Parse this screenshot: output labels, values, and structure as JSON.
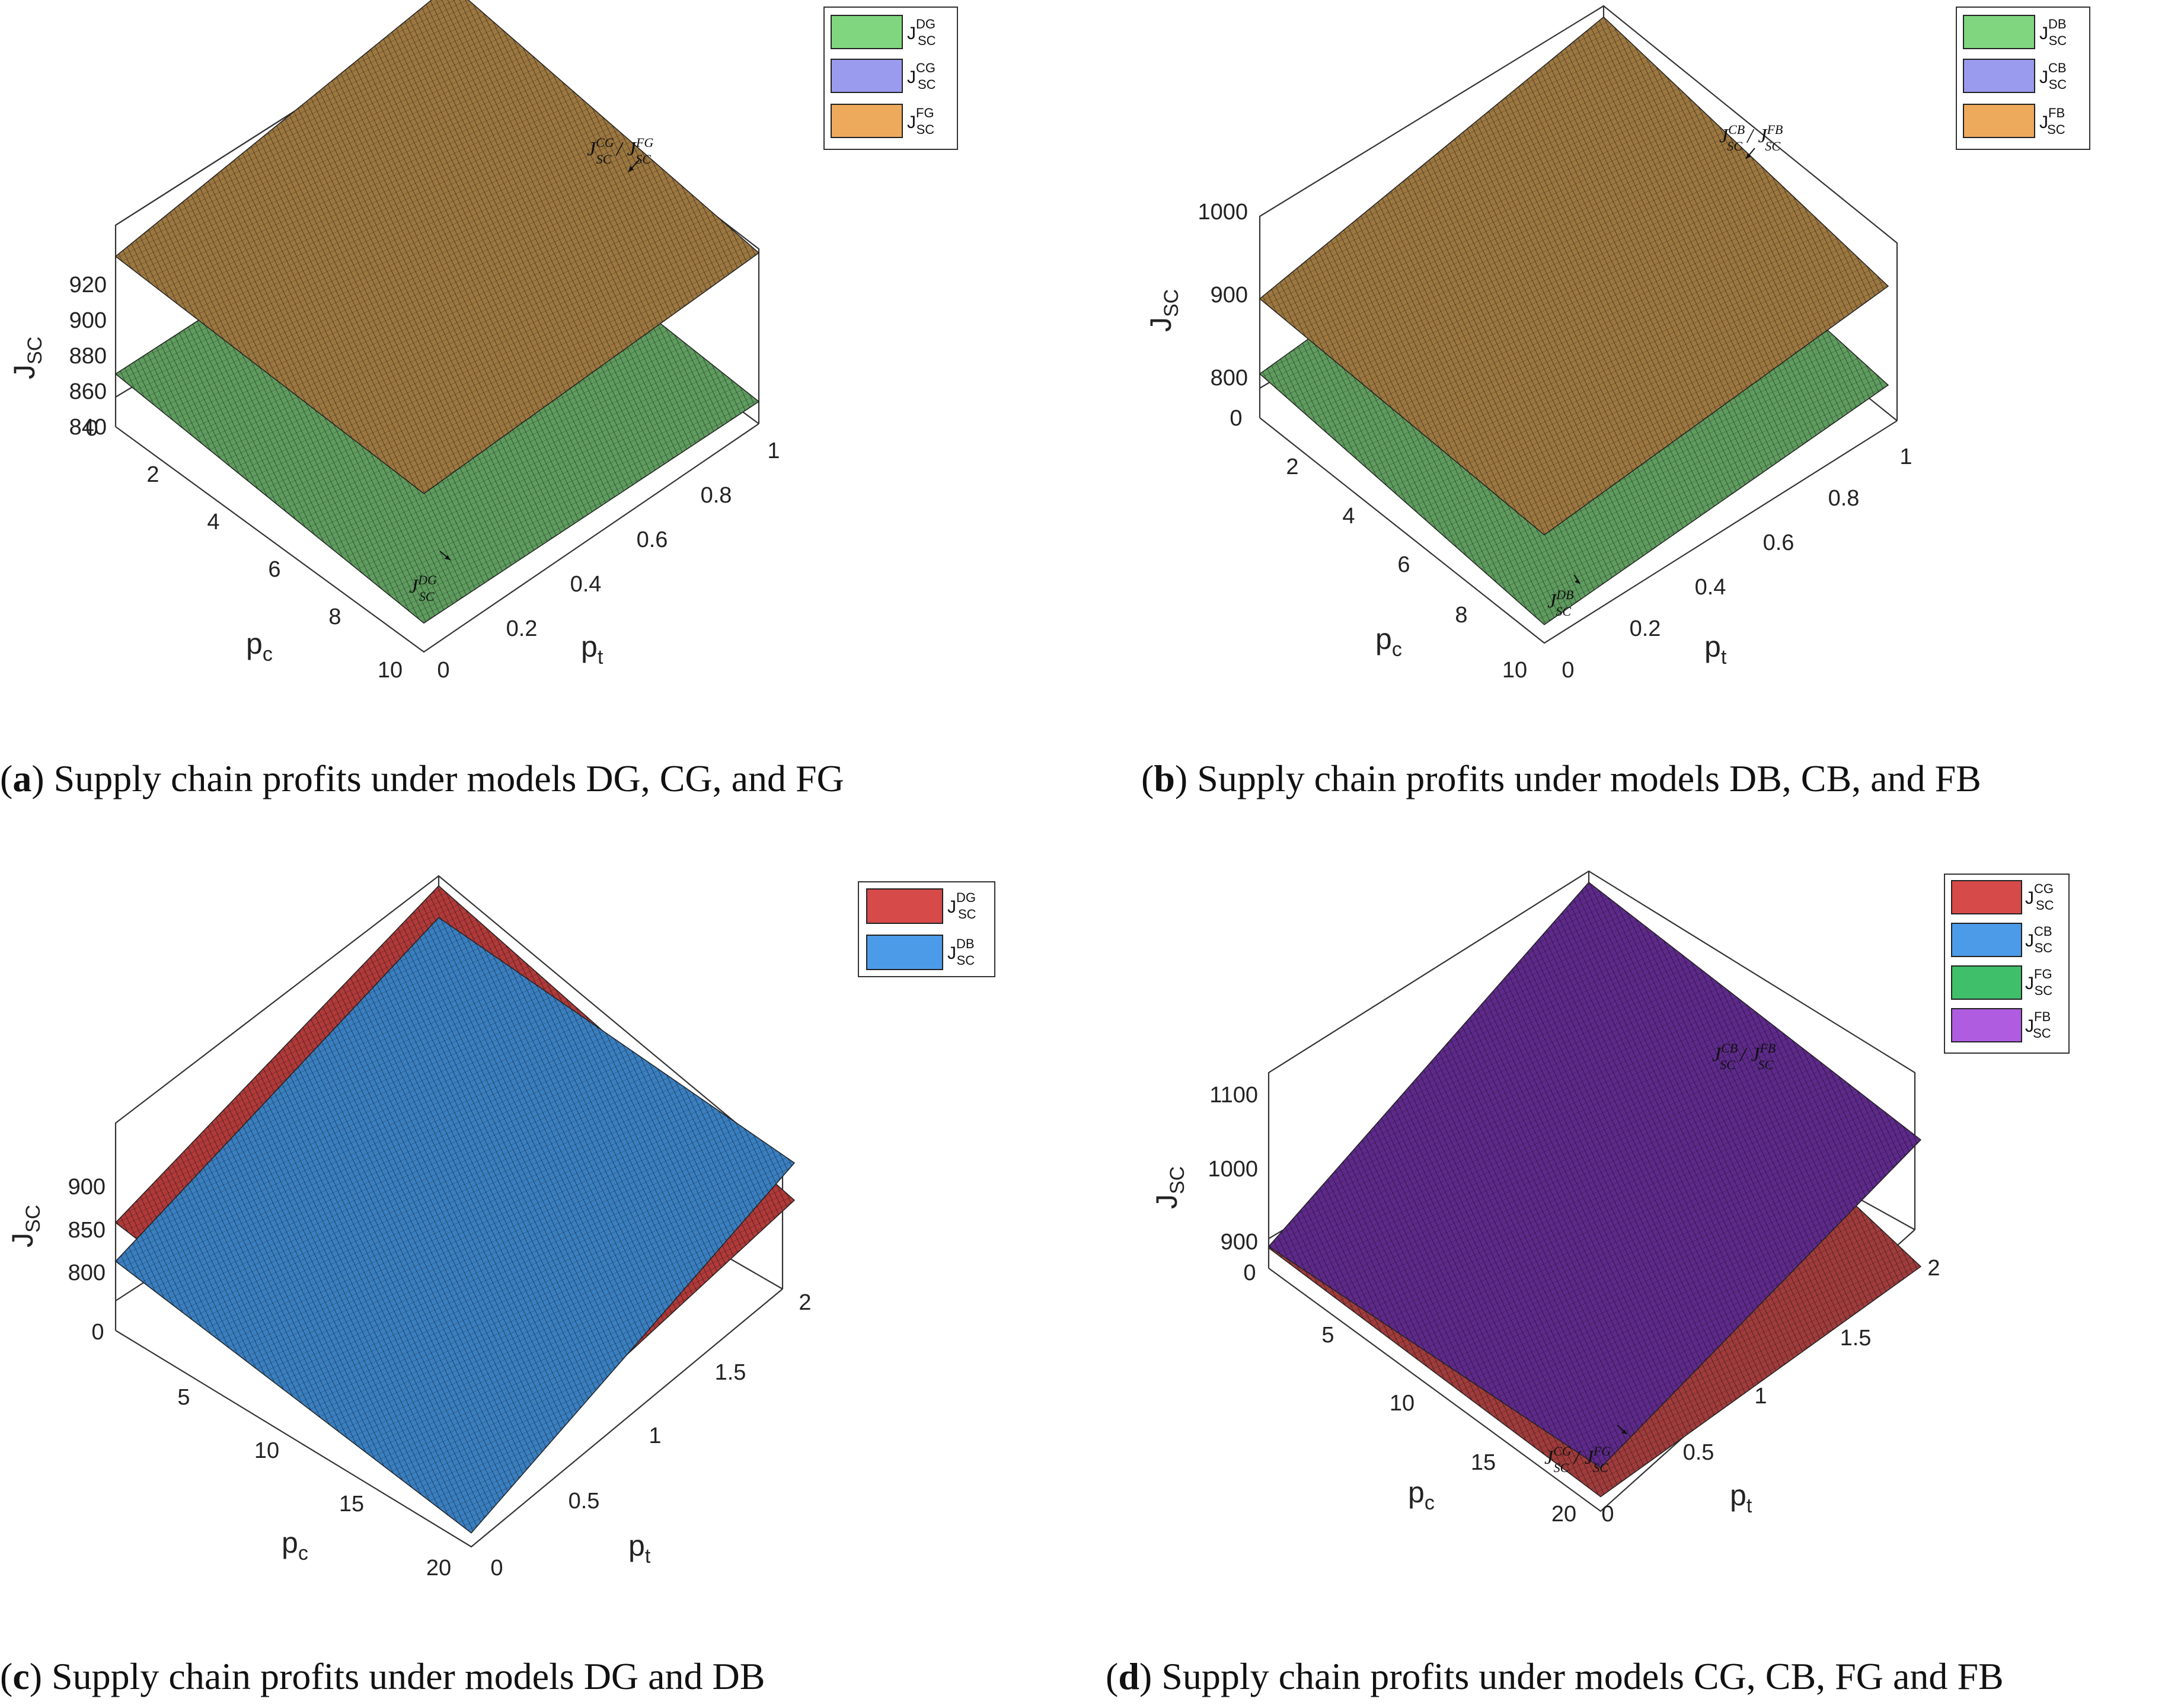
{
  "chart_data": [
    {
      "type": "surface",
      "caption_letter": "a",
      "caption": "Supply chain profits under models DG, CG, and FG",
      "zlabel": "J",
      "zlabel_sub": "SC",
      "xlabel": "p",
      "xlabel_sub": "c",
      "ylabel": "p",
      "ylabel_sub": "t",
      "xlim": [
        0,
        10
      ],
      "ylim": [
        0,
        1
      ],
      "zlim": [
        836,
        920
      ],
      "x_ticks": [
        "0",
        "2",
        "4",
        "6",
        "8",
        "10"
      ],
      "y_ticks": [
        "0",
        "0.2",
        "0.4",
        "0.6",
        "0.8",
        "1"
      ],
      "z_ticks": [
        "840",
        "860",
        "880",
        "900",
        "920"
      ],
      "legend": [
        {
          "label": "J",
          "sup": "DG",
          "sub": "SC",
          "color": "#7fd67f"
        },
        {
          "label": "J",
          "sup": "CG",
          "sub": "SC",
          "color": "#9a9aee"
        },
        {
          "label": "J",
          "sup": "FG",
          "sub": "SC",
          "color": "#eda95c"
        }
      ],
      "annotations": [
        {
          "text": "J",
          "sup1": "CG",
          "sub1": "SC",
          "mid": " / J",
          "sup2": "FG",
          "sub2": "SC"
        },
        {
          "text": "J",
          "sup1": "DG",
          "sub1": "SC"
        }
      ],
      "series": [
        {
          "name": "J_SC^DG",
          "color": "#5f9c5f",
          "corners": {
            "x0y0": 858,
            "x10y0": 848,
            "x10y1": 844,
            "x0y1": 852
          }
        },
        {
          "name": "J_SC^CG / J_SC^FG",
          "color": "#9c7740",
          "corners": {
            "x0y0": 907,
            "x10y0": 902,
            "x10y1": 906,
            "x0y1": 924
          }
        }
      ]
    },
    {
      "type": "surface",
      "caption_letter": "b",
      "caption": "Supply chain profits under models DB, CB, and FB",
      "zlabel": "J",
      "zlabel_sub": "SC",
      "xlabel": "p",
      "xlabel_sub": "c",
      "ylabel": "p",
      "ylabel_sub": "t",
      "xlim": [
        0,
        10
      ],
      "ylim": [
        0,
        1
      ],
      "zlim": [
        780,
        1000
      ],
      "x_ticks": [
        "0",
        "2",
        "4",
        "6",
        "8",
        "10"
      ],
      "y_ticks": [
        "0",
        "0.2",
        "0.4",
        "0.6",
        "0.8",
        "1"
      ],
      "z_ticks": [
        "800",
        "900",
        "1000"
      ],
      "legend": [
        {
          "label": "J",
          "sup": "DB",
          "sub": "SC",
          "color": "#7fd67f"
        },
        {
          "label": "J",
          "sup": "CB",
          "sub": "SC",
          "color": "#9a9aee"
        },
        {
          "label": "J",
          "sup": "FB",
          "sub": "SC",
          "color": "#eda95c"
        }
      ],
      "annotations": [
        {
          "text": "J",
          "sup1": "CB",
          "sub1": "SC",
          "mid": " / J",
          "sup2": "FB",
          "sub2": "SC"
        },
        {
          "text": "J",
          "sup1": "DB",
          "sub1": "SC"
        }
      ],
      "series": [
        {
          "name": "J_SC^DB",
          "color": "#5f9c5f",
          "corners": {
            "x0y0": 828,
            "x10y0": 800,
            "x10y1": 806,
            "x0y1": 842
          }
        },
        {
          "name": "J_SC^CB / J_SC^FB",
          "color": "#9c7740",
          "corners": {
            "x0y0": 910,
            "x10y0": 898,
            "x10y1": 914,
            "x0y1": 962
          }
        }
      ]
    },
    {
      "type": "surface",
      "caption_letter": "c",
      "caption": "Supply chain profits under models DG and DB",
      "zlabel": "J",
      "zlabel_sub": "SC",
      "xlabel": "p",
      "xlabel_sub": "c",
      "ylabel": "p",
      "ylabel_sub": "t",
      "xlim": [
        0,
        20
      ],
      "ylim": [
        0,
        2
      ],
      "zlim": [
        780,
        930
      ],
      "x_ticks": [
        "0",
        "5",
        "10",
        "15",
        "20"
      ],
      "y_ticks": [
        "0",
        "0.5",
        "1",
        "1.5",
        "2"
      ],
      "z_ticks": [
        "800",
        "850",
        "900"
      ],
      "legend": [
        {
          "label": "J",
          "sup": "DG",
          "sub": "SC",
          "color": "#d64a4a"
        },
        {
          "label": "J",
          "sup": "DB",
          "sub": "SC",
          "color": "#4c9be8"
        }
      ],
      "annotations": [],
      "series": [
        {
          "name": "J_SC^DG",
          "color": "#b03a3a",
          "corners": {
            "x0y0": 858,
            "x20y0": 815,
            "x20y2": 857,
            "x0y2": 928
          }
        },
        {
          "name": "J_SC^DB",
          "color": "#3a7fc0",
          "corners": {
            "x0y0": 830,
            "x20y0": 790,
            "x20y2": 884,
            "x0y2": 905
          }
        }
      ]
    },
    {
      "type": "surface",
      "caption_letter": "d",
      "caption": "Supply chain profits under models CG, CB, FG and FB",
      "zlabel": "J",
      "zlabel_sub": "SC",
      "xlabel": "p",
      "xlabel_sub": "c",
      "ylabel": "p",
      "ylabel_sub": "t",
      "xlim": [
        0,
        20
      ],
      "ylim": [
        0,
        2
      ],
      "zlim": [
        880,
        1150
      ],
      "x_ticks": [
        "0",
        "5",
        "10",
        "15",
        "20"
      ],
      "y_ticks": [
        "0",
        "0.5",
        "1",
        "1.5",
        "2"
      ],
      "z_ticks": [
        "900",
        "1000",
        "1100"
      ],
      "legend": [
        {
          "label": "J",
          "sup": "CG",
          "sub": "SC",
          "color": "#d64a4a"
        },
        {
          "label": "J",
          "sup": "CB",
          "sub": "SC",
          "color": "#4c9be8"
        },
        {
          "label": "J",
          "sup": "FG",
          "sub": "SC",
          "color": "#3fbf6a"
        },
        {
          "label": "J",
          "sup": "FB",
          "sub": "SC",
          "color": "#b05ce0"
        }
      ],
      "annotations": [
        {
          "text": "J",
          "sup1": "CB",
          "sub1": "SC",
          "mid": " / J",
          "sup2": "FB",
          "sub2": "SC"
        },
        {
          "text": "J",
          "sup1": "CG",
          "sub1": "SC",
          "mid": " / J",
          "sup2": "FG",
          "sub2": "SC"
        }
      ],
      "series": [
        {
          "name": "J_SC^CG / J_SC^FG",
          "color": "#a03c3c",
          "corners": {
            "x0y0": 908,
            "x20y0": 900,
            "x20y2": 915,
            "x0y2": 1010
          }
        },
        {
          "name": "J_SC^CB / J_SC^FB",
          "color": "#5e2a8a",
          "corners": {
            "x0y0": 910,
            "x20y0": 940,
            "x20y2": 1090,
            "x0y2": 1110
          }
        }
      ]
    }
  ]
}
